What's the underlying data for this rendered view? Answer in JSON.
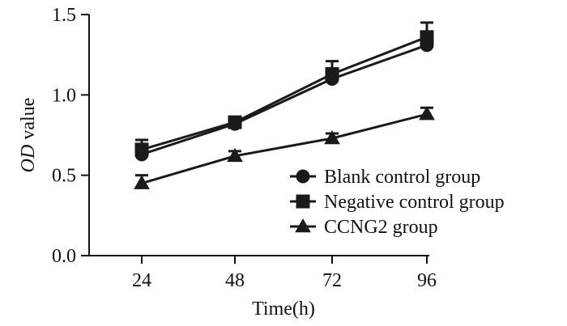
{
  "chart_data": {
    "type": "line",
    "title": "",
    "xlabel": "Time(h)",
    "ylabel_italic": "OD",
    "ylabel_rest": " value",
    "x": [
      24,
      48,
      72,
      96
    ],
    "x_tick_labels": [
      "24",
      "48",
      "72",
      "96"
    ],
    "ylim": [
      0,
      1.5
    ],
    "y_ticks": [
      0,
      0.5,
      1.0,
      1.5
    ],
    "y_tick_labels": [
      "0.0",
      "0.5",
      "1.0",
      "1.5"
    ],
    "grid": false,
    "legend_position": "lower-right",
    "series": [
      {
        "name": "Blank control group",
        "marker": "circle",
        "values": [
          0.63,
          0.82,
          1.1,
          1.31
        ],
        "errors": [
          0.03,
          0.02,
          0.03,
          0.03
        ]
      },
      {
        "name": "Negative control group",
        "marker": "square",
        "values": [
          0.66,
          0.83,
          1.13,
          1.36
        ],
        "errors": [
          0.06,
          0.03,
          0.08,
          0.09
        ]
      },
      {
        "name": "CCNG2 group",
        "marker": "triangle",
        "values": [
          0.45,
          0.62,
          0.73,
          0.88
        ],
        "errors": [
          0.05,
          0.03,
          0.03,
          0.04
        ]
      }
    ]
  }
}
